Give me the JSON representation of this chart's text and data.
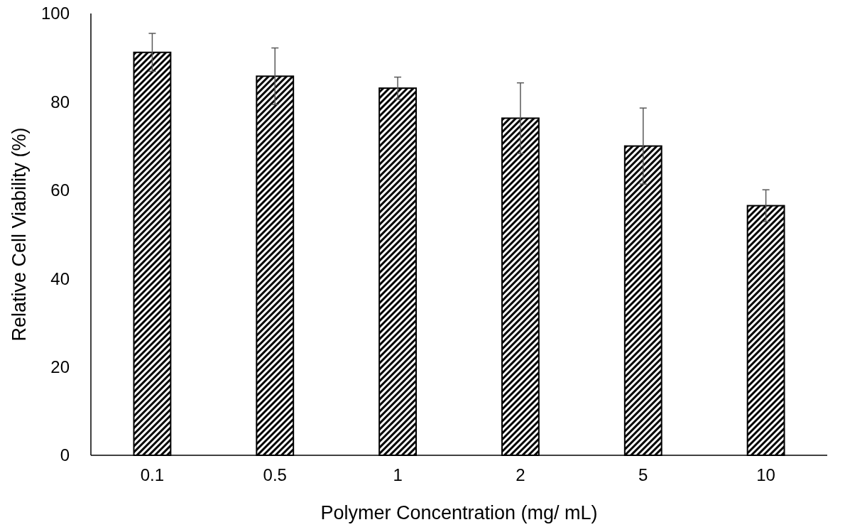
{
  "chart_data": {
    "type": "bar",
    "xlabel": "Polymer Concentration (mg/ mL)",
    "ylabel": "Relative Cell Viability (%)",
    "categories": [
      "0.1",
      "0.5",
      "1",
      "2",
      "5",
      "10"
    ],
    "values": [
      91.2,
      85.8,
      83.1,
      76.3,
      70.0,
      56.5
    ],
    "errors": [
      4.3,
      6.4,
      2.5,
      8.0,
      8.6,
      3.6
    ],
    "color": "#000000",
    "ylim": [
      0,
      100
    ],
    "yticks": [
      0,
      20,
      40,
      60,
      80,
      100
    ],
    "grid": false
  }
}
